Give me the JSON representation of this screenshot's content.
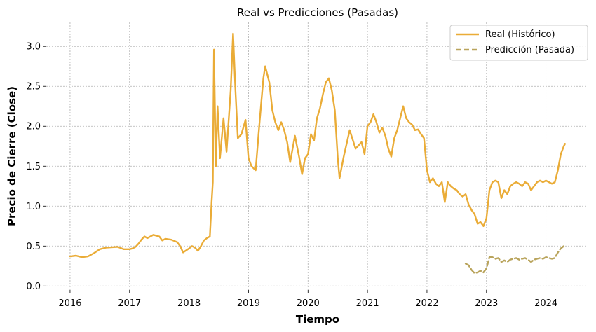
{
  "chart_data": {
    "type": "line",
    "title": "Real vs Predicciones (Pasadas)",
    "xlabel": "Tiempo",
    "ylabel": "Precio de Cierre (Close)",
    "xlim": [
      2015.6,
      2024.7
    ],
    "ylim": [
      -0.05,
      3.3
    ],
    "x_ticks": [
      2016,
      2017,
      2018,
      2019,
      2020,
      2021,
      2022,
      2023,
      2024
    ],
    "y_ticks": [
      0.0,
      0.5,
      1.0,
      1.5,
      2.0,
      2.5,
      3.0
    ],
    "y_tick_labels": [
      "0.0",
      "0.5",
      "1.0",
      "1.5",
      "2.0",
      "2.5",
      "3.0"
    ],
    "grid": true,
    "legend_position": "top-right",
    "series": [
      {
        "name": "Real (Histórico)",
        "color": "#eaac37",
        "style": "solid",
        "points": [
          [
            2016.0,
            0.37
          ],
          [
            2016.1,
            0.38
          ],
          [
            2016.2,
            0.36
          ],
          [
            2016.3,
            0.37
          ],
          [
            2016.4,
            0.41
          ],
          [
            2016.5,
            0.46
          ],
          [
            2016.6,
            0.48
          ],
          [
            2016.8,
            0.49
          ],
          [
            2016.9,
            0.46
          ],
          [
            2017.0,
            0.46
          ],
          [
            2017.05,
            0.47
          ],
          [
            2017.1,
            0.49
          ],
          [
            2017.15,
            0.53
          ],
          [
            2017.2,
            0.58
          ],
          [
            2017.25,
            0.62
          ],
          [
            2017.3,
            0.6
          ],
          [
            2017.4,
            0.64
          ],
          [
            2017.5,
            0.62
          ],
          [
            2017.55,
            0.57
          ],
          [
            2017.6,
            0.59
          ],
          [
            2017.7,
            0.58
          ],
          [
            2017.8,
            0.55
          ],
          [
            2017.85,
            0.5
          ],
          [
            2017.9,
            0.42
          ],
          [
            2018.0,
            0.47
          ],
          [
            2018.05,
            0.5
          ],
          [
            2018.1,
            0.48
          ],
          [
            2018.15,
            0.44
          ],
          [
            2018.2,
            0.5
          ],
          [
            2018.25,
            0.57
          ],
          [
            2018.3,
            0.6
          ],
          [
            2018.35,
            0.62
          ],
          [
            2018.38,
            1.05
          ],
          [
            2018.4,
            1.3
          ],
          [
            2018.42,
            2.96
          ],
          [
            2018.45,
            1.5
          ],
          [
            2018.48,
            2.25
          ],
          [
            2018.52,
            1.6
          ],
          [
            2018.58,
            2.1
          ],
          [
            2018.63,
            1.68
          ],
          [
            2018.7,
            2.45
          ],
          [
            2018.74,
            3.16
          ],
          [
            2018.78,
            2.45
          ],
          [
            2018.82,
            1.85
          ],
          [
            2018.88,
            1.9
          ],
          [
            2018.95,
            2.08
          ],
          [
            2019.0,
            1.6
          ],
          [
            2019.05,
            1.5
          ],
          [
            2019.12,
            1.45
          ],
          [
            2019.18,
            2.0
          ],
          [
            2019.25,
            2.6
          ],
          [
            2019.28,
            2.75
          ],
          [
            2019.35,
            2.55
          ],
          [
            2019.4,
            2.2
          ],
          [
            2019.45,
            2.05
          ],
          [
            2019.5,
            1.95
          ],
          [
            2019.55,
            2.05
          ],
          [
            2019.6,
            1.95
          ],
          [
            2019.65,
            1.8
          ],
          [
            2019.7,
            1.55
          ],
          [
            2019.78,
            1.88
          ],
          [
            2019.85,
            1.62
          ],
          [
            2019.9,
            1.4
          ],
          [
            2019.95,
            1.6
          ],
          [
            2020.0,
            1.65
          ],
          [
            2020.05,
            1.9
          ],
          [
            2020.1,
            1.82
          ],
          [
            2020.15,
            2.1
          ],
          [
            2020.2,
            2.22
          ],
          [
            2020.25,
            2.4
          ],
          [
            2020.3,
            2.55
          ],
          [
            2020.35,
            2.6
          ],
          [
            2020.4,
            2.45
          ],
          [
            2020.45,
            2.2
          ],
          [
            2020.5,
            1.6
          ],
          [
            2020.53,
            1.35
          ],
          [
            2020.6,
            1.62
          ],
          [
            2020.7,
            1.95
          ],
          [
            2020.8,
            1.72
          ],
          [
            2020.9,
            1.8
          ],
          [
            2020.95,
            1.65
          ],
          [
            2021.0,
            2.0
          ],
          [
            2021.05,
            2.05
          ],
          [
            2021.1,
            2.15
          ],
          [
            2021.15,
            2.05
          ],
          [
            2021.2,
            1.92
          ],
          [
            2021.25,
            1.98
          ],
          [
            2021.3,
            1.88
          ],
          [
            2021.35,
            1.72
          ],
          [
            2021.4,
            1.62
          ],
          [
            2021.45,
            1.85
          ],
          [
            2021.5,
            1.95
          ],
          [
            2021.6,
            2.25
          ],
          [
            2021.65,
            2.1
          ],
          [
            2021.7,
            2.05
          ],
          [
            2021.75,
            2.02
          ],
          [
            2021.8,
            1.95
          ],
          [
            2021.85,
            1.96
          ],
          [
            2021.9,
            1.9
          ],
          [
            2021.95,
            1.85
          ],
          [
            2022.0,
            1.45
          ],
          [
            2022.05,
            1.3
          ],
          [
            2022.1,
            1.35
          ],
          [
            2022.15,
            1.28
          ],
          [
            2022.2,
            1.25
          ],
          [
            2022.25,
            1.3
          ],
          [
            2022.3,
            1.05
          ],
          [
            2022.35,
            1.3
          ],
          [
            2022.4,
            1.25
          ],
          [
            2022.45,
            1.22
          ],
          [
            2022.5,
            1.2
          ],
          [
            2022.55,
            1.15
          ],
          [
            2022.6,
            1.12
          ],
          [
            2022.65,
            1.15
          ],
          [
            2022.7,
            1.02
          ],
          [
            2022.75,
            0.95
          ],
          [
            2022.8,
            0.9
          ],
          [
            2022.85,
            0.78
          ],
          [
            2022.9,
            0.8
          ],
          [
            2022.95,
            0.75
          ],
          [
            2023.0,
            0.85
          ],
          [
            2023.05,
            1.2
          ],
          [
            2023.1,
            1.3
          ],
          [
            2023.15,
            1.32
          ],
          [
            2023.2,
            1.3
          ],
          [
            2023.25,
            1.1
          ],
          [
            2023.3,
            1.2
          ],
          [
            2023.35,
            1.15
          ],
          [
            2023.4,
            1.25
          ],
          [
            2023.45,
            1.28
          ],
          [
            2023.5,
            1.3
          ],
          [
            2023.55,
            1.28
          ],
          [
            2023.6,
            1.25
          ],
          [
            2023.65,
            1.3
          ],
          [
            2023.7,
            1.28
          ],
          [
            2023.75,
            1.2
          ],
          [
            2023.8,
            1.25
          ],
          [
            2023.85,
            1.3
          ],
          [
            2023.9,
            1.32
          ],
          [
            2023.95,
            1.3
          ],
          [
            2024.0,
            1.32
          ],
          [
            2024.05,
            1.3
          ],
          [
            2024.1,
            1.28
          ],
          [
            2024.15,
            1.3
          ],
          [
            2024.2,
            1.45
          ],
          [
            2024.25,
            1.65
          ],
          [
            2024.3,
            1.75
          ],
          [
            2024.32,
            1.78
          ]
        ]
      },
      {
        "name": "Predicción (Pasada)",
        "color": "#b9a45c",
        "style": "dashed",
        "points": [
          [
            2022.65,
            0.28
          ],
          [
            2022.7,
            0.26
          ],
          [
            2022.75,
            0.2
          ],
          [
            2022.8,
            0.16
          ],
          [
            2022.85,
            0.17
          ],
          [
            2022.9,
            0.19
          ],
          [
            2022.95,
            0.17
          ],
          [
            2023.0,
            0.22
          ],
          [
            2023.05,
            0.36
          ],
          [
            2023.1,
            0.36
          ],
          [
            2023.15,
            0.34
          ],
          [
            2023.2,
            0.35
          ],
          [
            2023.25,
            0.3
          ],
          [
            2023.3,
            0.32
          ],
          [
            2023.35,
            0.3
          ],
          [
            2023.4,
            0.33
          ],
          [
            2023.45,
            0.34
          ],
          [
            2023.5,
            0.35
          ],
          [
            2023.55,
            0.33
          ],
          [
            2023.6,
            0.34
          ],
          [
            2023.65,
            0.35
          ],
          [
            2023.7,
            0.33
          ],
          [
            2023.75,
            0.3
          ],
          [
            2023.8,
            0.33
          ],
          [
            2023.85,
            0.34
          ],
          [
            2023.9,
            0.35
          ],
          [
            2023.95,
            0.34
          ],
          [
            2024.0,
            0.36
          ],
          [
            2024.05,
            0.35
          ],
          [
            2024.1,
            0.34
          ],
          [
            2024.15,
            0.35
          ],
          [
            2024.2,
            0.42
          ],
          [
            2024.25,
            0.47
          ],
          [
            2024.3,
            0.5
          ],
          [
            2024.32,
            0.52
          ]
        ]
      }
    ]
  }
}
